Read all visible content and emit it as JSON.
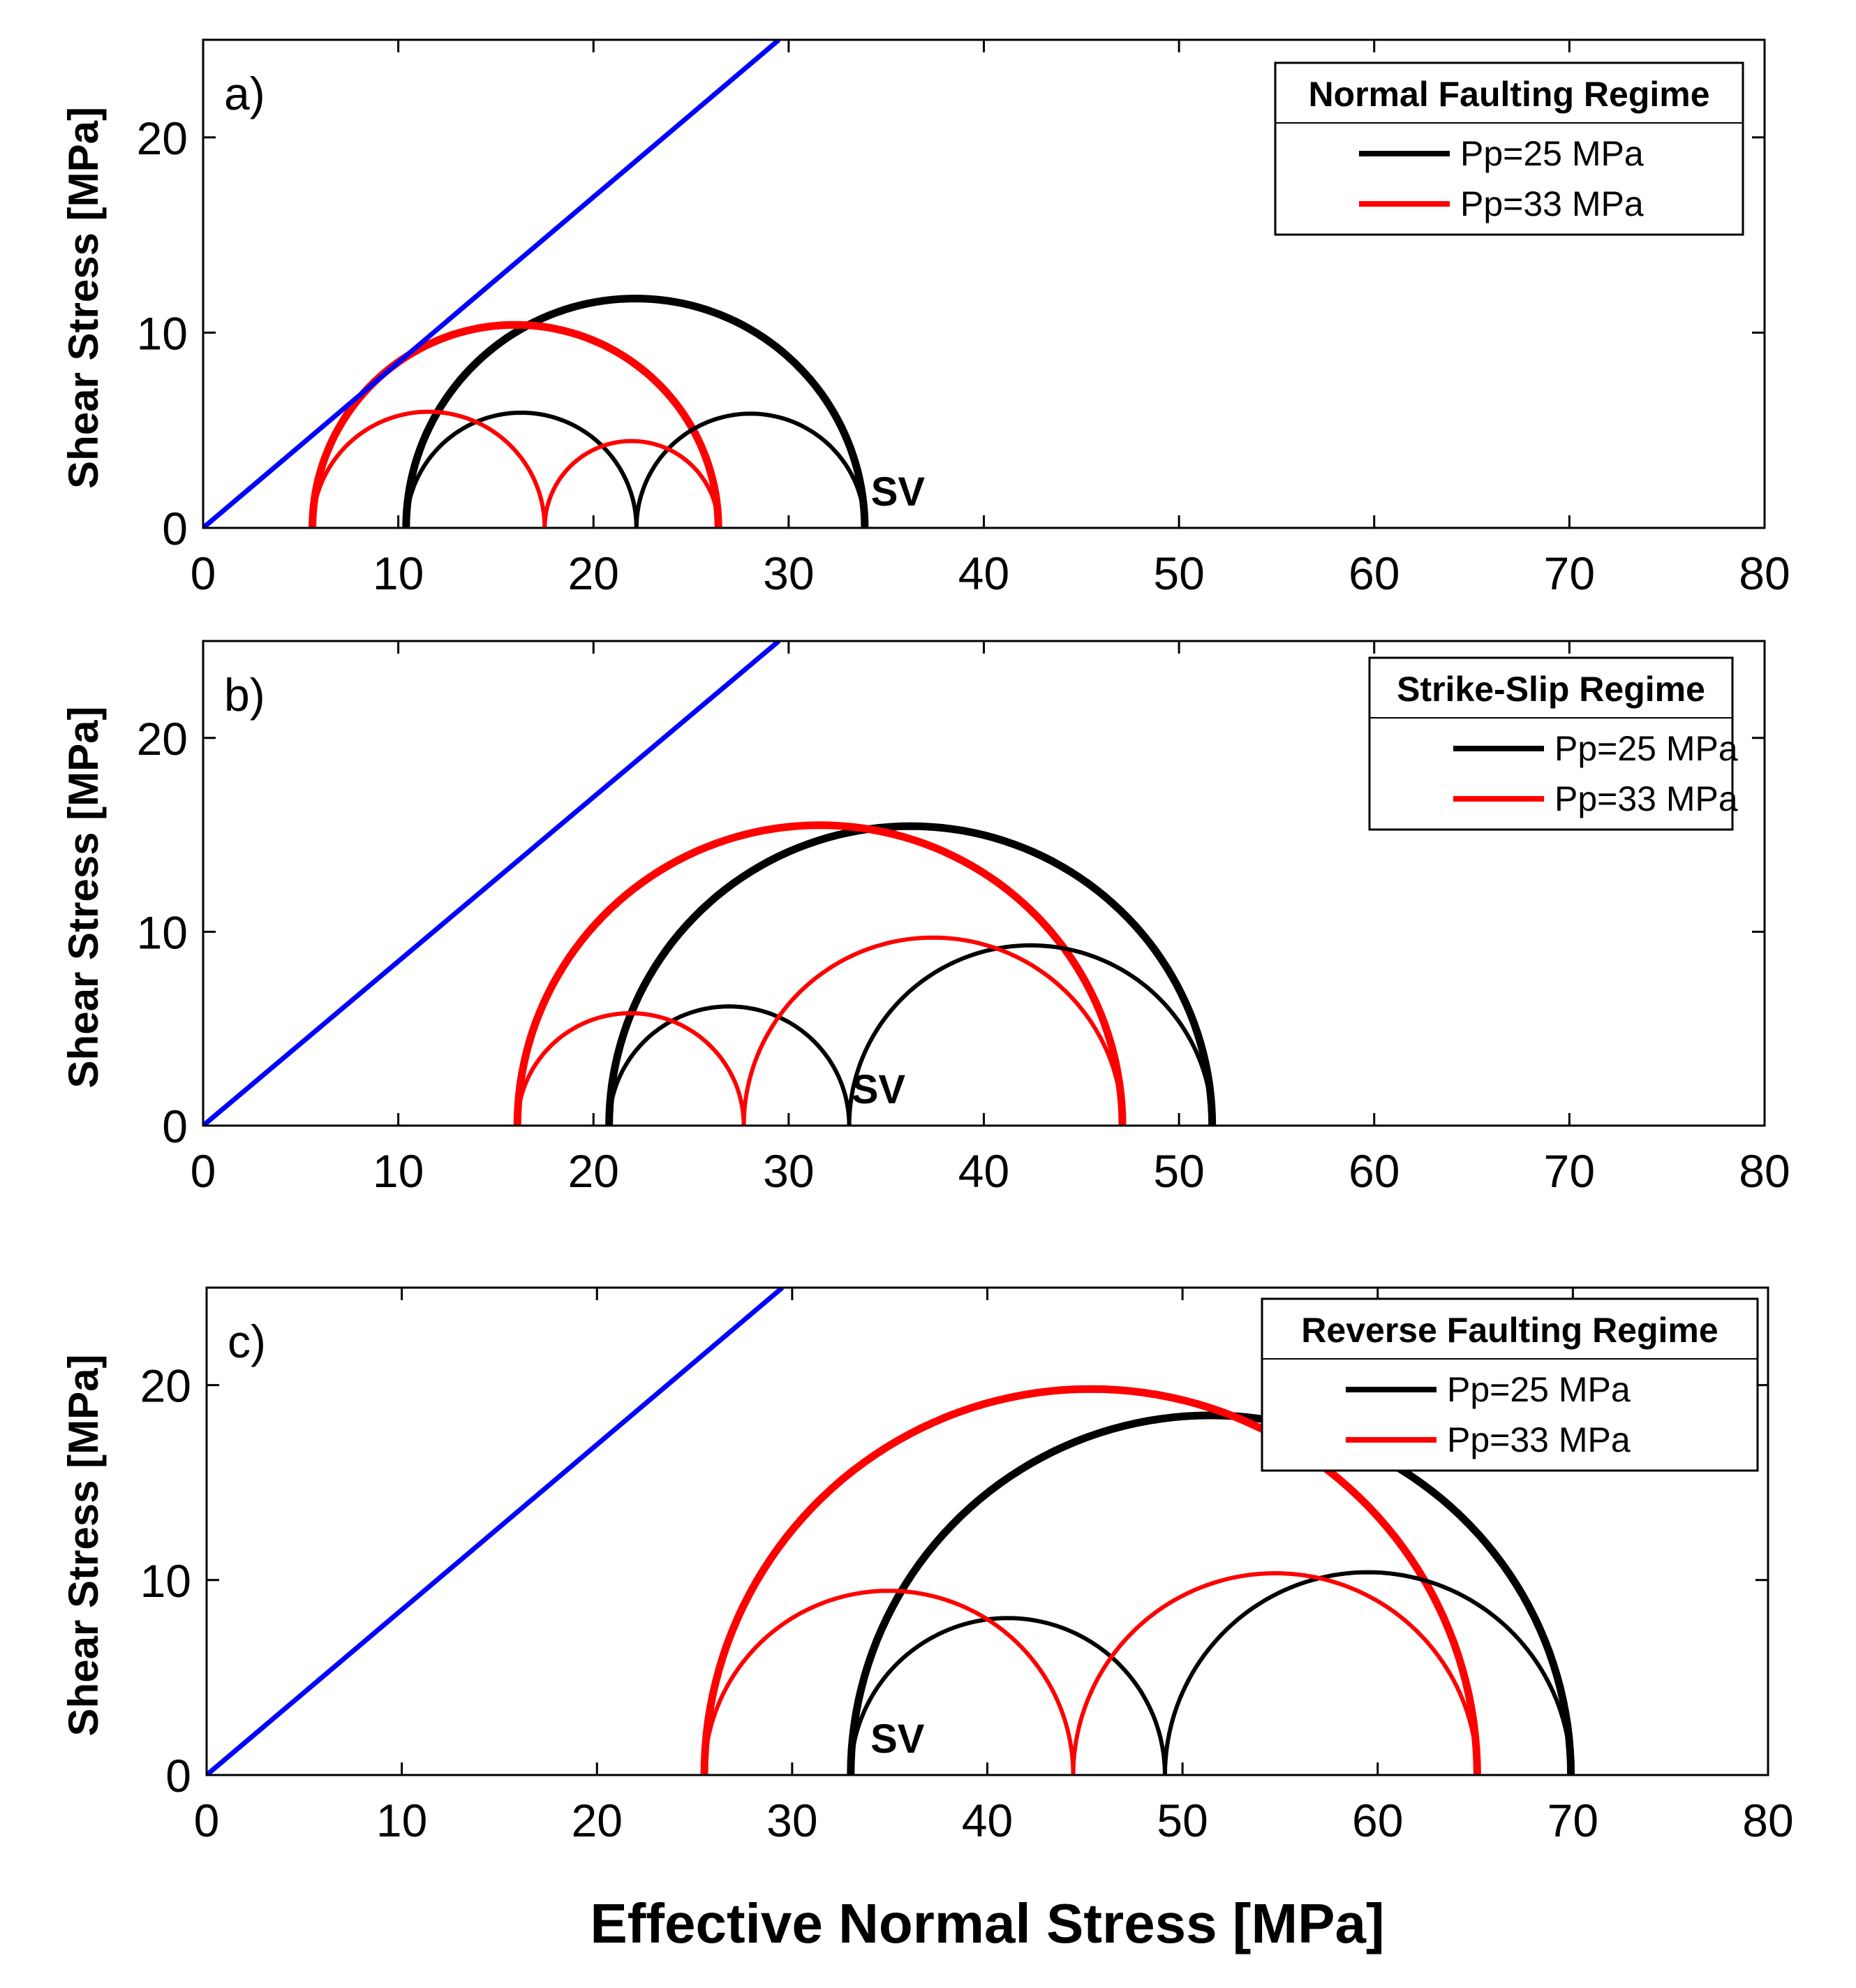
{
  "chart_data": [
    {
      "type": "line",
      "panel_label": "a)",
      "title": "Normal Faulting Regime",
      "xlabel": "",
      "ylabel": "Shear Stress  [MPa]",
      "xlim": [
        0,
        80
      ],
      "ylim": [
        0,
        25
      ],
      "xticks": [
        0,
        10,
        20,
        30,
        40,
        50,
        60,
        70,
        80
      ],
      "yticks": [
        0,
        10,
        20
      ],
      "xtick_labels": [
        "0",
        "10",
        "20",
        "30",
        "40",
        "50",
        "60",
        "70",
        "80"
      ],
      "ytick_labels": [
        "0",
        "10",
        "20"
      ],
      "failure_line": {
        "color": "#0000ff",
        "x": [
          0,
          29.5
        ],
        "y": [
          0,
          25
        ]
      },
      "annotation": {
        "text": "SV",
        "x": 34.0,
        "y": 1.0
      },
      "legend": {
        "title": "Normal Faulting Regime",
        "position": "top-right",
        "entries": [
          {
            "label": "Pp=25 MPa",
            "color": "#000000"
          },
          {
            "label": "Pp=33 MPa",
            "color": "#ff0000"
          }
        ]
      },
      "series": [
        {
          "name": "Pp=25 MPa",
          "color": "#000000",
          "circles": [
            {
              "s3": 10.4,
              "s1": 33.9,
              "width": "thick"
            },
            {
              "s3": 10.4,
              "s1": 22.2,
              "width": "thin"
            },
            {
              "s3": 22.2,
              "s1": 33.9,
              "width": "thin"
            }
          ]
        },
        {
          "name": "Pp=33 MPa",
          "color": "#ff0000",
          "circles": [
            {
              "s3": 5.6,
              "s1": 26.4,
              "width": "thick"
            },
            {
              "s3": 5.6,
              "s1": 17.5,
              "width": "thin"
            },
            {
              "s3": 17.5,
              "s1": 26.4,
              "width": "thin"
            }
          ]
        }
      ]
    },
    {
      "type": "line",
      "panel_label": "b)",
      "title": "Strike-Slip Regime",
      "xlabel": "",
      "ylabel": "Shear Stress  [MPa]",
      "xlim": [
        0,
        80
      ],
      "ylim": [
        0,
        25
      ],
      "xticks": [
        0,
        10,
        20,
        30,
        40,
        50,
        60,
        70,
        80
      ],
      "yticks": [
        0,
        10,
        20
      ],
      "xtick_labels": [
        "0",
        "10",
        "20",
        "30",
        "40",
        "50",
        "60",
        "70",
        "80"
      ],
      "ytick_labels": [
        "0",
        "10",
        "20"
      ],
      "failure_line": {
        "color": "#0000ff",
        "x": [
          0,
          29.5
        ],
        "y": [
          0,
          25
        ]
      },
      "annotation": {
        "text": "SV",
        "x": 33.0,
        "y": 1.0
      },
      "legend": {
        "title": "Strike-Slip Regime",
        "position": "top-right",
        "entries": [
          {
            "label": "Pp=25 MPa",
            "color": "#000000"
          },
          {
            "label": "Pp=33 MPa",
            "color": "#ff0000"
          }
        ]
      },
      "series": [
        {
          "name": "Pp=25 MPa",
          "color": "#000000",
          "circles": [
            {
              "s3": 20.8,
              "s1": 51.7,
              "width": "thick"
            },
            {
              "s3": 20.8,
              "s1": 33.1,
              "width": "thin"
            },
            {
              "s3": 33.1,
              "s1": 51.7,
              "width": "thin"
            }
          ]
        },
        {
          "name": "Pp=33 MPa",
          "color": "#ff0000",
          "circles": [
            {
              "s3": 16.1,
              "s1": 47.1,
              "width": "thick"
            },
            {
              "s3": 16.1,
              "s1": 27.7,
              "width": "thin"
            },
            {
              "s3": 27.7,
              "s1": 47.1,
              "width": "thin"
            }
          ]
        }
      ]
    },
    {
      "type": "line",
      "panel_label": "c)",
      "title": "Reverse  Faulting Regime",
      "xlabel": "Effective Normal Stress [MPa]",
      "ylabel": "Shear Stress  [MPa]",
      "xlim": [
        0,
        80
      ],
      "ylim": [
        0,
        25
      ],
      "xticks": [
        0,
        10,
        20,
        30,
        40,
        50,
        60,
        70,
        80
      ],
      "yticks": [
        0,
        10,
        20
      ],
      "xtick_labels": [
        "0",
        "10",
        "20",
        "30",
        "40",
        "50",
        "60",
        "70",
        "80"
      ],
      "ytick_labels": [
        "0",
        "10",
        "20"
      ],
      "failure_line": {
        "color": "#0000ff",
        "x": [
          0,
          29.5
        ],
        "y": [
          0,
          25
        ]
      },
      "annotation": {
        "text": "SV",
        "x": 33.8,
        "y": 1.0
      },
      "legend": {
        "title": "Reverse  Faulting Regime",
        "position": "top-right",
        "entries": [
          {
            "label": "Pp=25 MPa",
            "color": "#000000"
          },
          {
            "label": "Pp=33 MPa",
            "color": "#ff0000"
          }
        ]
      },
      "series": [
        {
          "name": "Pp=25 MPa",
          "color": "#000000",
          "circles": [
            {
              "s3": 33.0,
              "s1": 69.9,
              "width": "thick"
            },
            {
              "s3": 33.0,
              "s1": 49.1,
              "width": "thin"
            },
            {
              "s3": 49.1,
              "s1": 69.9,
              "width": "thin"
            }
          ]
        },
        {
          "name": "Pp=33 MPa",
          "color": "#ff0000",
          "circles": [
            {
              "s3": 25.5,
              "s1": 65.1,
              "width": "thick"
            },
            {
              "s3": 25.5,
              "s1": 44.4,
              "width": "thin"
            },
            {
              "s3": 44.4,
              "s1": 65.1,
              "width": "thin"
            }
          ]
        }
      ]
    }
  ]
}
